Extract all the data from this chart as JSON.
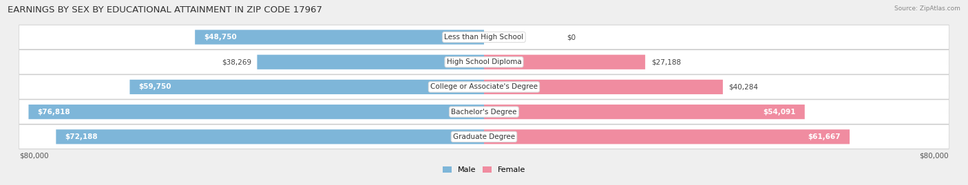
{
  "title": "EARNINGS BY SEX BY EDUCATIONAL ATTAINMENT IN ZIP CODE 17967",
  "source": "Source: ZipAtlas.com",
  "categories": [
    "Less than High School",
    "High School Diploma",
    "College or Associate's Degree",
    "Bachelor's Degree",
    "Graduate Degree"
  ],
  "male_values": [
    48750,
    38269,
    59750,
    76818,
    72188
  ],
  "female_values": [
    0,
    27188,
    40284,
    54091,
    61667
  ],
  "male_labels": [
    "$48,750",
    "$38,269",
    "$59,750",
    "$76,818",
    "$72,188"
  ],
  "female_labels": [
    "$0",
    "$27,188",
    "$40,284",
    "$54,091",
    "$61,667"
  ],
  "male_color": "#7EB6D9",
  "female_color": "#F08CA0",
  "max_value": 80000,
  "x_axis_label_left": "$80,000",
  "x_axis_label_right": "$80,000",
  "background_color": "#efefef",
  "row_bg_color_light": "#f8f8f8",
  "row_bg_color_dark": "#e8e8e8",
  "title_fontsize": 9.5,
  "bar_label_fontsize": 7.5,
  "category_fontsize": 7.5,
  "male_label_inside": [
    true,
    false,
    true,
    true,
    true
  ],
  "female_label_inside": [
    false,
    false,
    false,
    true,
    true
  ]
}
